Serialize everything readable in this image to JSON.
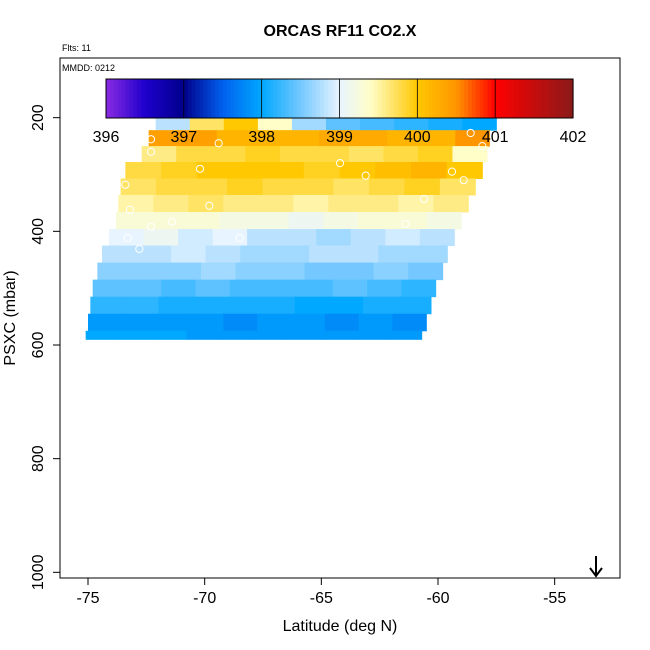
{
  "chart_data": {
    "type": "heatmap",
    "title": "ORCAS RF11 CO2.X",
    "annotation_flts": "Flts: 11",
    "annotation_mmdd": "MMDD: 0212",
    "xlabel": "Latitude (deg N)",
    "ylabel": "PSXC (mbar)",
    "xlim": [
      -76.2,
      -52.2
    ],
    "ylim": [
      1010,
      95
    ],
    "x_ticks": [
      -75,
      -70,
      -65,
      -60,
      -55
    ],
    "x_tick_labels": [
      "-75",
      "-70",
      "-65",
      "-60",
      "-55"
    ],
    "y_ticks": [
      200,
      400,
      600,
      800,
      1000
    ],
    "y_tick_labels": [
      "200",
      "400",
      "600",
      "800",
      "1000"
    ],
    "colorbar": {
      "min": 396,
      "max": 402,
      "ticks": [
        396,
        397,
        398,
        399,
        400,
        401,
        402
      ],
      "tick_labels": [
        "396",
        "397",
        "398",
        "399",
        "400",
        "401",
        "402"
      ],
      "stops": [
        {
          "v": 396.0,
          "c": "#8a2be2"
        },
        {
          "v": 396.5,
          "c": "#1f00cc"
        },
        {
          "v": 397.0,
          "c": "#00008b"
        },
        {
          "v": 397.5,
          "c": "#0060ee"
        },
        {
          "v": 398.0,
          "c": "#00a8ff"
        },
        {
          "v": 398.5,
          "c": "#74c8ff"
        },
        {
          "v": 399.0,
          "c": "#e8f4ff"
        },
        {
          "v": 399.4,
          "c": "#fffdc8"
        },
        {
          "v": 400.0,
          "c": "#ffc800"
        },
        {
          "v": 400.5,
          "c": "#ff9600"
        },
        {
          "v": 401.0,
          "c": "#ff0000"
        },
        {
          "v": 402.0,
          "c": "#8b1a1a"
        }
      ]
    },
    "rows": [
      {
        "p0": 175,
        "p1": 197,
        "lat0": -71.7,
        "lat1": -56.9,
        "values": [
          398.1,
          398.0,
          397.9,
          397.7,
          397.5,
          397.2,
          397.0,
          396.9,
          397.0,
          397.4
        ]
      },
      {
        "p0": 197,
        "p1": 222,
        "lat0": -72.1,
        "lat1": -57.5,
        "values": [
          398.8,
          399.7,
          400.0,
          399.4,
          398.7,
          398.4,
          398.3,
          398.2,
          398.1,
          398.0
        ]
      },
      {
        "p0": 222,
        "p1": 250,
        "lat0": -72.4,
        "lat1": -57.8,
        "values": [
          400.4,
          400.4,
          400.2,
          400.2,
          400.2,
          400.3,
          400.3,
          400.2,
          400.2,
          400.5
        ]
      },
      {
        "p0": 250,
        "p1": 278,
        "lat0": -72.7,
        "lat1": -57.9,
        "values": [
          399.6,
          399.8,
          399.8,
          399.9,
          399.8,
          399.8,
          399.7,
          399.8,
          399.9,
          399.4
        ]
      },
      {
        "p0": 278,
        "p1": 307,
        "lat0": -73.4,
        "lat1": -58.1,
        "values": [
          399.8,
          399.9,
          400.0,
          400.0,
          400.0,
          399.9,
          400.0,
          400.1,
          400.2,
          400.0
        ]
      },
      {
        "p0": 307,
        "p1": 336,
        "lat0": -73.6,
        "lat1": -58.4,
        "values": [
          399.7,
          399.8,
          399.8,
          399.9,
          399.8,
          399.8,
          399.7,
          399.8,
          399.9,
          399.7
        ]
      },
      {
        "p0": 336,
        "p1": 366,
        "lat0": -73.7,
        "lat1": -58.7,
        "values": [
          399.5,
          399.6,
          399.7,
          399.6,
          399.6,
          399.5,
          399.6,
          399.6,
          399.5,
          399.6
        ]
      },
      {
        "p0": 366,
        "p1": 396,
        "lat0": -73.8,
        "lat1": -59.0,
        "values": [
          399.3,
          399.3,
          399.3,
          399.2,
          399.2,
          399.1,
          399.2,
          399.3,
          399.3,
          399.2
        ]
      },
      {
        "p0": 396,
        "p1": 425,
        "lat0": -74.1,
        "lat1": -59.3,
        "values": [
          399.0,
          399.1,
          398.9,
          399.0,
          398.8,
          398.8,
          398.7,
          398.8,
          398.9,
          398.8
        ]
      },
      {
        "p0": 425,
        "p1": 455,
        "lat0": -74.4,
        "lat1": -59.6,
        "values": [
          398.8,
          398.8,
          398.9,
          398.8,
          398.7,
          398.7,
          398.8,
          398.8,
          398.7,
          398.7
        ]
      },
      {
        "p0": 455,
        "p1": 485,
        "lat0": -74.6,
        "lat1": -59.8,
        "values": [
          398.6,
          398.6,
          398.6,
          398.7,
          398.6,
          398.6,
          398.5,
          398.5,
          398.6,
          398.5
        ]
      },
      {
        "p0": 485,
        "p1": 515,
        "lat0": -74.8,
        "lat1": -60.1,
        "values": [
          398.4,
          398.4,
          398.3,
          398.4,
          398.3,
          398.3,
          398.3,
          398.4,
          398.3,
          398.2
        ]
      },
      {
        "p0": 515,
        "p1": 545,
        "lat0": -74.9,
        "lat1": -60.3,
        "values": [
          398.2,
          398.2,
          398.1,
          398.1,
          398.1,
          398.1,
          398.0,
          398.0,
          398.1,
          398.1
        ]
      },
      {
        "p0": 545,
        "p1": 575,
        "lat0": -75.0,
        "lat1": -60.5,
        "values": [
          397.9,
          397.9,
          397.9,
          397.9,
          397.8,
          397.9,
          397.9,
          397.8,
          397.9,
          397.8
        ]
      },
      {
        "p0": 575,
        "p1": 590,
        "lat0": -75.1,
        "lat1": -60.7,
        "values": [
          398.0,
          398.0,
          398.0,
          397.9,
          397.9,
          397.9,
          397.9,
          397.9,
          397.9,
          397.9
        ]
      }
    ],
    "points": [
      {
        "lat": -71.6,
        "p": 182
      },
      {
        "lat": -70.2,
        "p": 180
      },
      {
        "lat": -64.9,
        "p": 181
      },
      {
        "lat": -59.1,
        "p": 186
      },
      {
        "lat": -58.9,
        "p": 186
      },
      {
        "lat": -57.7,
        "p": 188
      },
      {
        "lat": -57.4,
        "p": 187
      },
      {
        "lat": -57.0,
        "p": 180
      },
      {
        "lat": -56.9,
        "p": 188
      },
      {
        "lat": -72.3,
        "p": 238
      },
      {
        "lat": -69.4,
        "p": 245
      },
      {
        "lat": -58.6,
        "p": 227
      },
      {
        "lat": -58.1,
        "p": 250
      },
      {
        "lat": -72.3,
        "p": 260
      },
      {
        "lat": -59.4,
        "p": 295
      },
      {
        "lat": -58.9,
        "p": 310
      },
      {
        "lat": -73.4,
        "p": 318
      },
      {
        "lat": -58.0,
        "p": 318
      },
      {
        "lat": -70.2,
        "p": 290
      },
      {
        "lat": -64.2,
        "p": 280
      },
      {
        "lat": -71.4,
        "p": 383
      },
      {
        "lat": -73.2,
        "p": 362
      },
      {
        "lat": -72.3,
        "p": 392
      },
      {
        "lat": -69.8,
        "p": 355
      },
      {
        "lat": -63.1,
        "p": 302
      },
      {
        "lat": -61.4,
        "p": 387
      },
      {
        "lat": -60.6,
        "p": 343
      },
      {
        "lat": -73.3,
        "p": 412
      },
      {
        "lat": -68.5,
        "p": 412
      },
      {
        "lat": -72.8,
        "p": 431
      }
    ]
  }
}
